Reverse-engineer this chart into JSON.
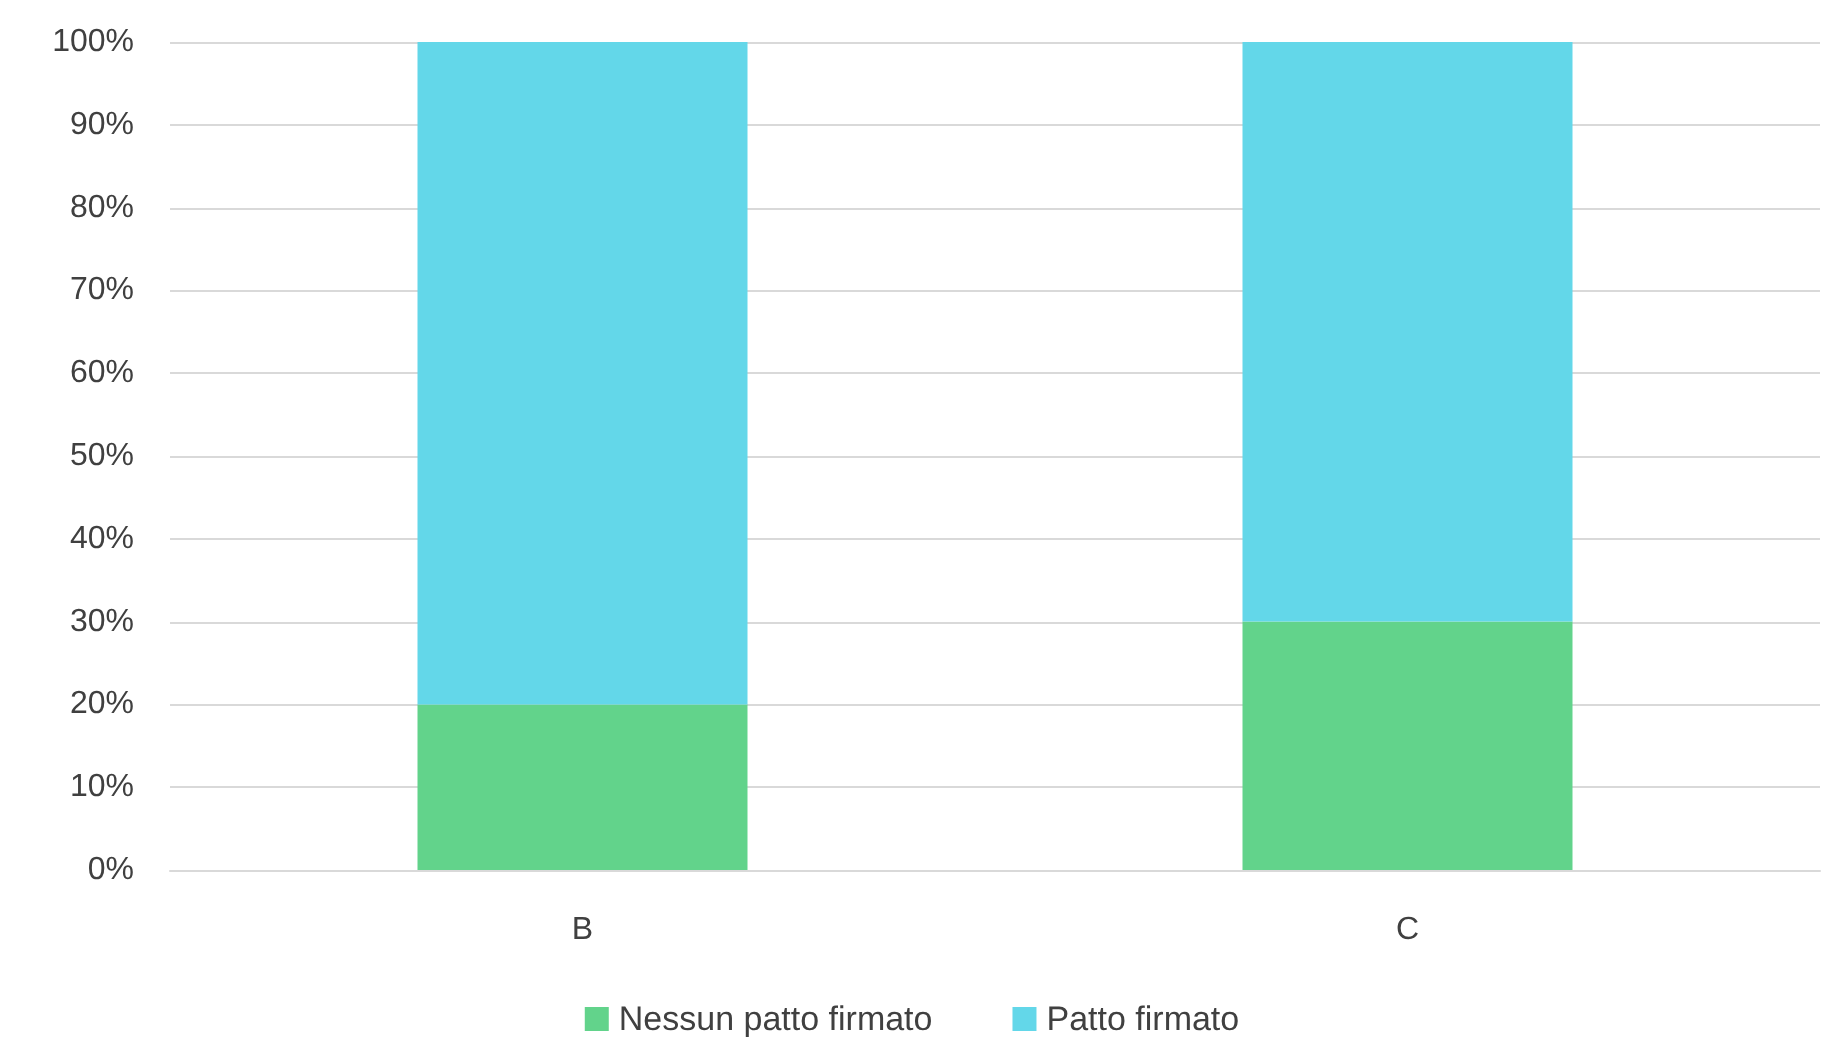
{
  "chart_data": {
    "type": "bar",
    "stacked": true,
    "categories": [
      "B",
      "C"
    ],
    "series": [
      {
        "name": "Nessun patto firmato",
        "color": "#62d38b",
        "values": [
          20,
          30
        ]
      },
      {
        "name": "Patto firmato",
        "color": "#63d7e9",
        "values": [
          80,
          70
        ]
      }
    ],
    "ylim": [
      0,
      100
    ],
    "yticks": [
      {
        "value": 0,
        "label": "0%"
      },
      {
        "value": 10,
        "label": "10%"
      },
      {
        "value": 20,
        "label": "20%"
      },
      {
        "value": 30,
        "label": "30%"
      },
      {
        "value": 40,
        "label": "40%"
      },
      {
        "value": 50,
        "label": "50%"
      },
      {
        "value": 60,
        "label": "60%"
      },
      {
        "value": 70,
        "label": "70%"
      },
      {
        "value": 80,
        "label": "80%"
      },
      {
        "value": 90,
        "label": "90%"
      },
      {
        "value": 100,
        "label": "100%"
      }
    ],
    "grid": "y",
    "legend": "bottom"
  }
}
